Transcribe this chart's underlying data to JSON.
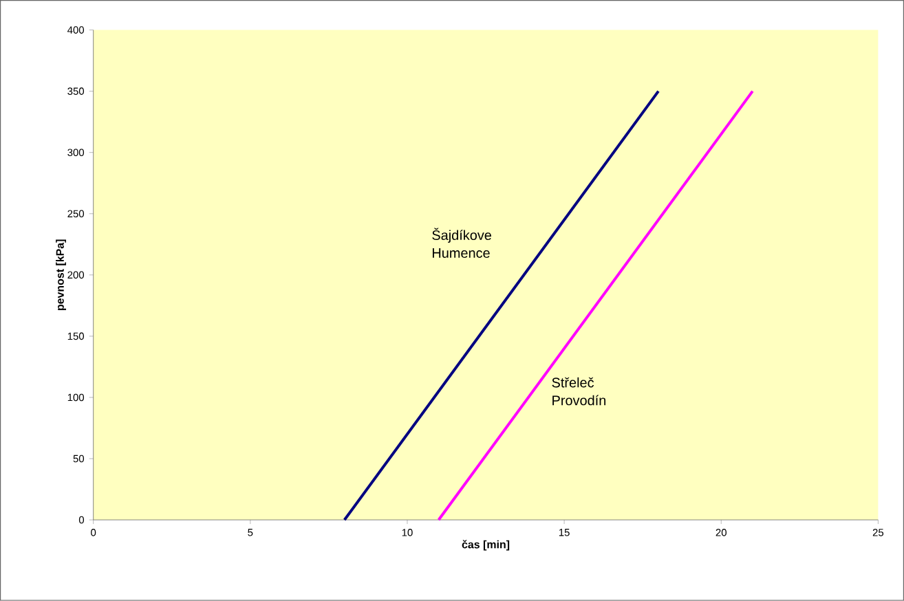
{
  "chart_data": {
    "type": "line",
    "xlabel": "čas [min]",
    "ylabel": "pevnost [kPa]",
    "xlim": [
      0,
      25
    ],
    "ylim": [
      0,
      400
    ],
    "xticks": [
      0,
      5,
      10,
      15,
      20,
      25
    ],
    "yticks": [
      0,
      50,
      100,
      150,
      200,
      250,
      300,
      350,
      400
    ],
    "series": [
      {
        "name": "Šajdíkove Humence",
        "color": "#000080",
        "x": [
          8,
          18
        ],
        "values": [
          0,
          350
        ]
      },
      {
        "name": "Střeleč Provodín",
        "color": "#ff00ff",
        "x": [
          11,
          21
        ],
        "values": [
          0,
          350
        ]
      }
    ]
  }
}
